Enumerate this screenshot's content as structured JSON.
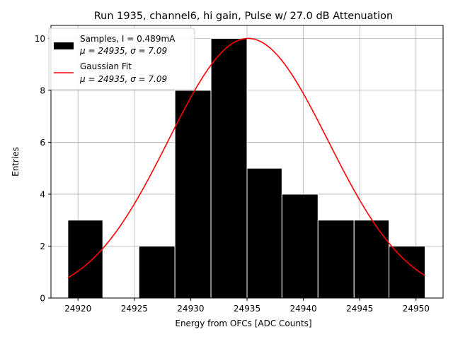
{
  "chart_data": {
    "type": "bar",
    "title": "Run 1935, channel6, hi gain, Pulse w/ 27.0 dB Attenuation",
    "xlabel": "Energy from OFCs [ADC Counts]",
    "ylabel": "Entries",
    "xlim": [
      24917.6,
      24952.4
    ],
    "ylim": [
      0,
      10.5
    ],
    "xticks": [
      24920,
      24925,
      24930,
      24935,
      24940,
      24945,
      24950
    ],
    "yticks": [
      0,
      2,
      4,
      6,
      8,
      10
    ],
    "grid": true,
    "legend_position": "top-left",
    "bins": [
      {
        "x0": 24919.1,
        "x1": 24922.2,
        "count": 3
      },
      {
        "x0": 24922.2,
        "x1": 24925.4,
        "count": 0
      },
      {
        "x0": 24925.4,
        "x1": 24928.6,
        "count": 2
      },
      {
        "x0": 24928.6,
        "x1": 24931.8,
        "count": 8
      },
      {
        "x0": 24931.8,
        "x1": 24935.0,
        "count": 10
      },
      {
        "x0": 24935.0,
        "x1": 24938.1,
        "count": 5
      },
      {
        "x0": 24938.1,
        "x1": 24941.3,
        "count": 4
      },
      {
        "x0": 24941.3,
        "x1": 24944.5,
        "count": 3
      },
      {
        "x0": 24944.5,
        "x1": 24947.6,
        "count": 3
      },
      {
        "x0": 24947.6,
        "x1": 24950.8,
        "count": 2
      }
    ],
    "series": [
      {
        "name": "Samples, I = 0.489mA",
        "stats": "μ = 24935, σ = 7.09",
        "kind": "histogram",
        "color": "#000000"
      },
      {
        "name": "Gaussian Fit",
        "stats": "μ = 24935, σ = 7.09",
        "kind": "line",
        "color": "#ff0000",
        "mu": 24935.1,
        "sigma": 7.09,
        "amplitude": 10.0,
        "x_range": [
          24919.1,
          24950.8
        ]
      }
    ]
  }
}
